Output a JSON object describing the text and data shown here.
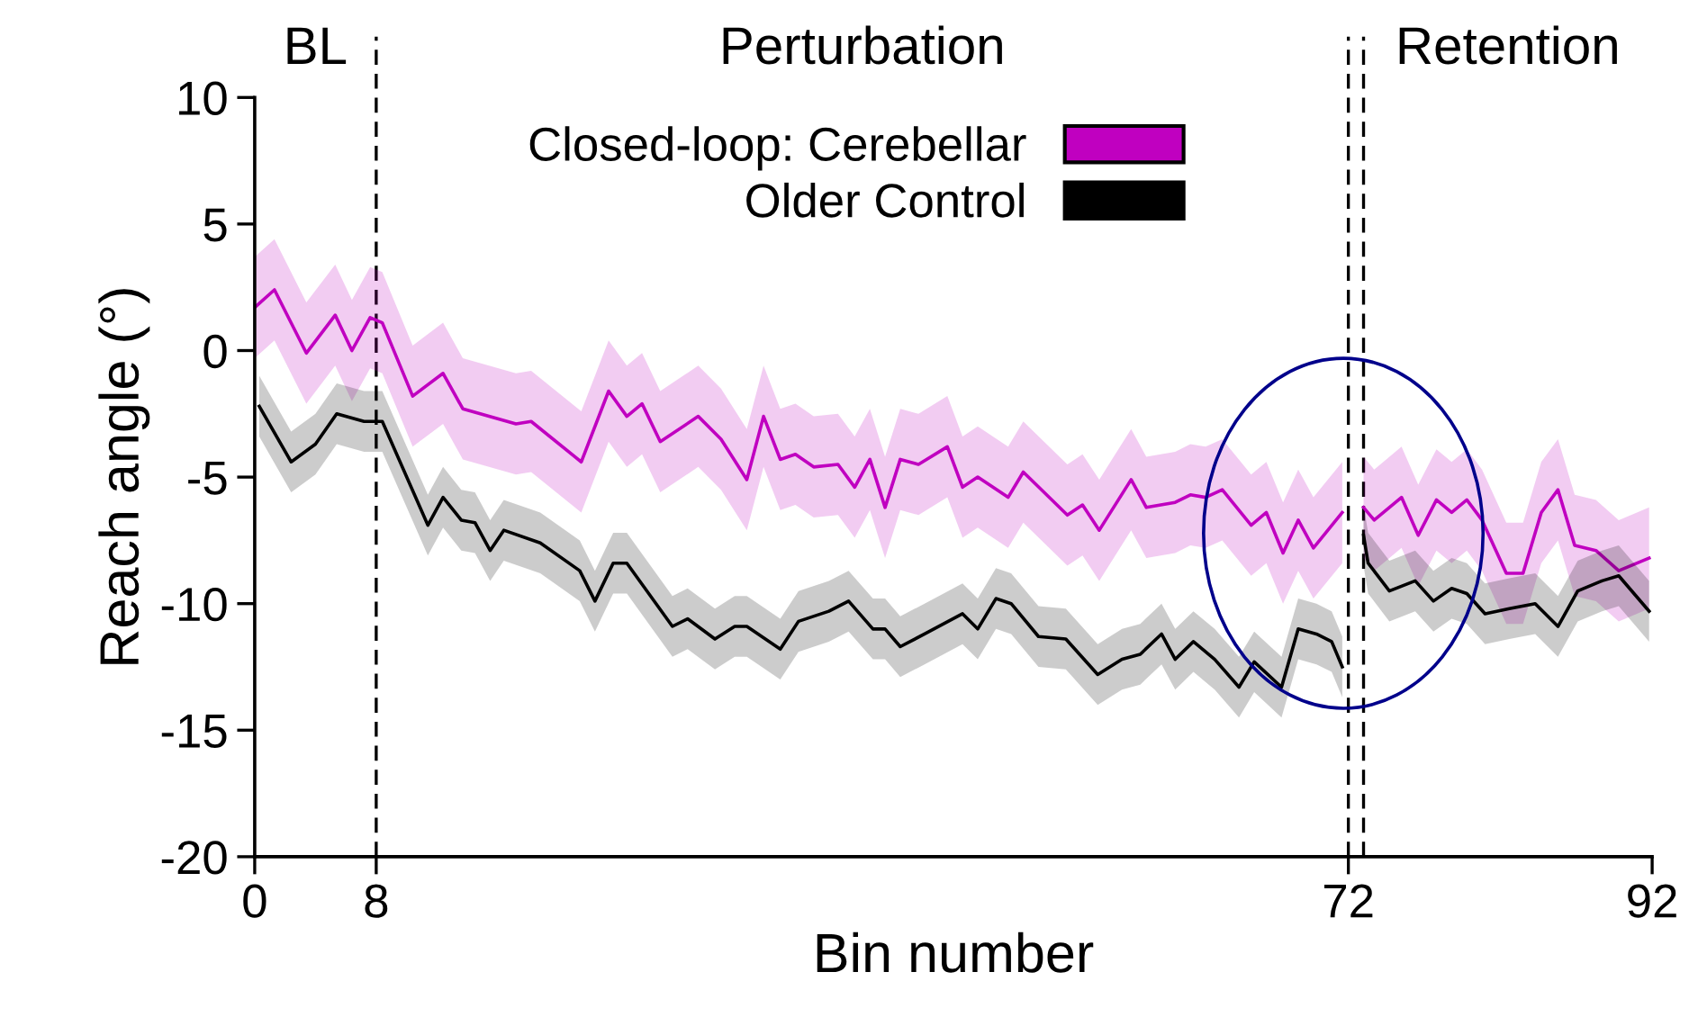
{
  "chart_data": {
    "type": "line",
    "xlabel": "Bin number",
    "ylabel": "Reach angle (°)",
    "xlim": [
      0,
      92
    ],
    "xticks": [
      0,
      8,
      72,
      92
    ],
    "ylim": [
      -20,
      10
    ],
    "yticks": [
      -20,
      -15,
      -10,
      -5,
      0,
      5,
      10
    ],
    "grid": false,
    "legend": "top",
    "line_style": "solid",
    "marker": "none",
    "annotations": [
      "BL",
      "Perturbation",
      "Retention"
    ],
    "ref_lines": [
      {
        "axis": "x",
        "value": 8,
        "label": null,
        "color": "#000000",
        "line_style": "dashed"
      },
      {
        "axis": "x",
        "value": 72,
        "label": null,
        "color": "#000000",
        "line_style": "dashed"
      },
      {
        "axis": "x",
        "value": 73,
        "label": null,
        "color": "#000000",
        "line_style": "dashed"
      }
    ],
    "series": [
      {
        "name": "Closed-loop: Cerebellar",
        "color": "#c000c0",
        "x": [
          0,
          1.3,
          3.4,
          5.3,
          6.4,
          7.6,
          8.4,
          10.4,
          12.4,
          13.7,
          17.2,
          18.2,
          21.5,
          23.3,
          24.5,
          25.5,
          26.7,
          29.2,
          30.7,
          32.4,
          33.5,
          34.6,
          35.6,
          36.8,
          38.4,
          39.5,
          40.5,
          41.5,
          42.5,
          43.7,
          45.6,
          46.6,
          47.6,
          49.6,
          50.6,
          53.5,
          54.5,
          55.6,
          57.7,
          58.7,
          60.6,
          61.6,
          62.6,
          63.7,
          65.6,
          66.6,
          67.7,
          68.7,
          69.7,
          71.6,
          72.3,
          73.0,
          73.7,
          75.5,
          76.6,
          77.8,
          78.8,
          79.8,
          80.8,
          82.4,
          83.5,
          84.7,
          85.8,
          86.9,
          88.3,
          89.8,
          91.8
        ],
        "values": [
          1.7,
          2.4,
          -0.1,
          1.4,
          0,
          1.3,
          1.1,
          -1.8,
          -0.9,
          -2.3,
          -2.9,
          -2.8,
          -4.4,
          -1.6,
          -2.6,
          -2.1,
          -3.6,
          -2.6,
          -3.5,
          -5.1,
          -2.6,
          -4.3,
          -4.1,
          -4.6,
          -4.5,
          -5.4,
          -4.3,
          -6.2,
          -4.3,
          -4.5,
          -3.8,
          -5.4,
          -5.0,
          -5.8,
          -4.8,
          -6.5,
          -6.1,
          -7.1,
          -5.1,
          -6.2,
          -6.0,
          -5.7,
          -5.8,
          -5.5,
          -6.9,
          -6.4,
          -8.0,
          -6.7,
          -7.8,
          -6.4,
          null,
          -6.2,
          -6.7,
          -5.8,
          -7.3,
          -5.9,
          -6.4,
          -5.9,
          -6.7,
          -8.8,
          -8.8,
          -6.4,
          -5.5,
          -7.7,
          -7.9,
          -8.7,
          -8.2
        ],
        "upper": [
          3.7,
          4.4,
          1.9,
          3.4,
          2,
          3.3,
          3.1,
          0.2,
          1.1,
          -0.3,
          -0.9,
          -0.8,
          -2.4,
          0.4,
          -0.6,
          -0.1,
          -1.6,
          -0.6,
          -1.5,
          -3.1,
          -0.6,
          -2.3,
          -2.1,
          -2.6,
          -2.5,
          -3.4,
          -2.3,
          -4.2,
          -2.3,
          -2.5,
          -1.8,
          -3.4,
          -3.0,
          -3.8,
          -2.8,
          -4.5,
          -4.1,
          -5.1,
          -3.1,
          -4.2,
          -4.0,
          -3.7,
          -3.8,
          -3.5,
          -4.9,
          -4.4,
          -6.0,
          -4.7,
          -5.8,
          -4.4,
          null,
          -4.2,
          -4.7,
          -3.8,
          -5.3,
          -3.9,
          -4.4,
          -3.9,
          -4.7,
          -6.8,
          -6.8,
          -4.4,
          -3.5,
          -5.7,
          -5.9,
          -6.7,
          -6.2
        ],
        "lower": [
          -0.3,
          0.4,
          -2.1,
          -0.6,
          -2,
          -0.7,
          -0.9,
          -3.8,
          -2.9,
          -4.3,
          -4.9,
          -4.8,
          -6.4,
          -3.6,
          -4.6,
          -4.1,
          -5.6,
          -4.6,
          -5.5,
          -7.1,
          -4.6,
          -6.3,
          -6.1,
          -6.6,
          -6.5,
          -7.4,
          -6.3,
          -8.2,
          -6.3,
          -6.5,
          -5.8,
          -7.4,
          -7.0,
          -7.8,
          -6.8,
          -8.5,
          -8.1,
          -9.1,
          -7.1,
          -8.2,
          -8.0,
          -7.7,
          -7.8,
          -7.5,
          -8.9,
          -8.4,
          -10.0,
          -8.7,
          -9.8,
          -8.4,
          null,
          -8.2,
          -8.7,
          -7.8,
          -9.3,
          -7.9,
          -8.4,
          -7.9,
          -8.7,
          -10.8,
          -10.8,
          -8.4,
          -7.5,
          -9.7,
          -9.9,
          -10.7,
          -10.2
        ]
      },
      {
        "name": "Older Control",
        "color": "#000000",
        "x": [
          0.3,
          2.4,
          4.0,
          5.4,
          7.2,
          8.4,
          11.4,
          12.4,
          13.6,
          14.5,
          15.5,
          16.4,
          18.8,
          21.4,
          22.4,
          23.6,
          24.5,
          27.5,
          28.5,
          30.3,
          31.6,
          32.4,
          34.6,
          35.8,
          37.8,
          39.1,
          40.7,
          41.5,
          42.5,
          44.1,
          46.6,
          47.6,
          48.8,
          49.8,
          51.6,
          53.4,
          55.5,
          57.1,
          58.3,
          59.7,
          60.6,
          61.8,
          63.2,
          64.8,
          65.8,
          67.6,
          68.7,
          69.9,
          70.9,
          71.6,
          72.3,
          73.0,
          73.3,
          74.7,
          76.4,
          77.6,
          78.8,
          79.8,
          81.0,
          82.6,
          84.3,
          85.8,
          87.1,
          88.7,
          89.8,
          91.8
        ],
        "values": [
          -2.2,
          -4.4,
          -3.7,
          -2.5,
          -2.8,
          -2.8,
          -6.9,
          -5.8,
          -6.7,
          -6.8,
          -7.9,
          -7.1,
          -7.6,
          -8.7,
          -9.9,
          -8.4,
          -8.4,
          -10.9,
          -10.6,
          -11.4,
          -10.9,
          -10.9,
          -11.8,
          -10.7,
          -10.3,
          -9.9,
          -11.0,
          -11.0,
          -11.7,
          -11.2,
          -10.4,
          -11.0,
          -9.8,
          -10.0,
          -11.3,
          -11.4,
          -12.8,
          -12.2,
          -12.0,
          -11.2,
          -12.2,
          -11.5,
          -12.2,
          -13.3,
          -12.3,
          -13.3,
          -11.0,
          -11.2,
          -11.5,
          -12.5,
          null,
          -7.3,
          -8.4,
          -9.5,
          -9.1,
          -9.9,
          -9.4,
          -9.6,
          -10.4,
          -10.2,
          -10.0,
          -10.9,
          -9.5,
          -9.1,
          -8.9,
          -10.3
        ],
        "upper": [
          -1.0,
          -3.2,
          -2.5,
          -1.3,
          -1.6,
          -1.6,
          -5.7,
          -4.6,
          -5.5,
          -5.6,
          -6.7,
          -5.9,
          -6.4,
          -7.5,
          -8.7,
          -7.2,
          -7.2,
          -9.7,
          -9.4,
          -10.2,
          -9.7,
          -9.7,
          -10.6,
          -9.5,
          -9.1,
          -8.7,
          -9.8,
          -9.8,
          -10.5,
          -10.0,
          -9.2,
          -9.8,
          -8.6,
          -8.8,
          -10.1,
          -10.2,
          -11.6,
          -11.0,
          -10.8,
          -10.0,
          -11.0,
          -10.3,
          -11.0,
          -12.1,
          -11.1,
          -12.1,
          -9.8,
          -10.0,
          -10.3,
          -11.3,
          null,
          -6.1,
          -7.2,
          -8.3,
          -7.9,
          -8.7,
          -8.2,
          -8.4,
          -9.2,
          -9.0,
          -8.8,
          -9.7,
          -8.3,
          -7.9,
          -7.7,
          -9.1
        ],
        "lower": [
          -3.4,
          -5.6,
          -4.9,
          -3.7,
          -4.0,
          -4.0,
          -8.1,
          -7.0,
          -7.9,
          -8.0,
          -9.1,
          -8.3,
          -8.8,
          -9.9,
          -11.1,
          -9.6,
          -9.6,
          -12.1,
          -11.8,
          -12.6,
          -12.1,
          -12.1,
          -13.0,
          -11.9,
          -11.5,
          -11.1,
          -12.2,
          -12.2,
          -12.9,
          -12.4,
          -11.6,
          -12.2,
          -11.0,
          -11.2,
          -12.5,
          -12.6,
          -14.0,
          -13.4,
          -13.2,
          -12.4,
          -13.4,
          -12.7,
          -13.4,
          -14.5,
          -13.5,
          -14.5,
          -12.2,
          -12.4,
          -12.7,
          -13.7,
          null,
          -8.5,
          -9.6,
          -10.7,
          -10.3,
          -11.1,
          -10.6,
          -10.8,
          -11.6,
          -11.4,
          -11.2,
          -12.1,
          -10.7,
          -10.3,
          -10.1,
          -11.5
        ]
      }
    ]
  }
}
